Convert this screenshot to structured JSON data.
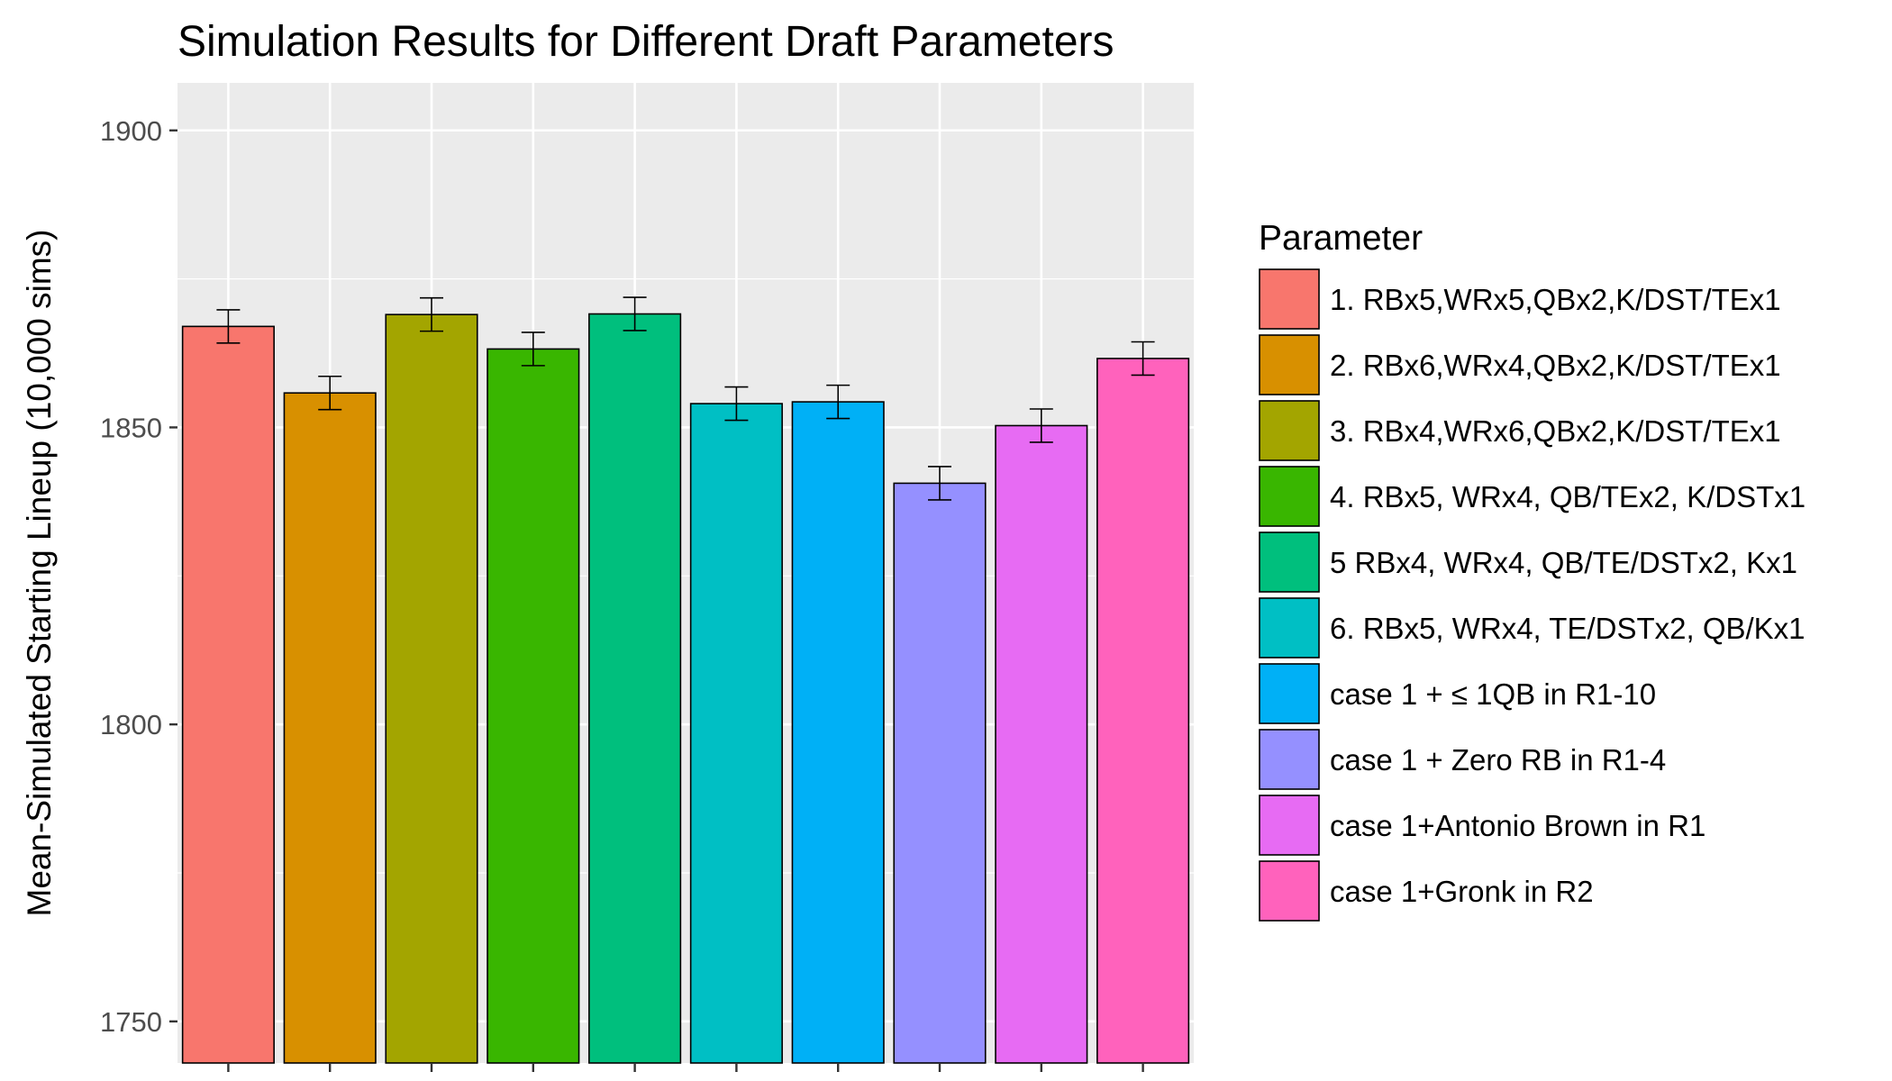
{
  "chart_data": {
    "type": "bar",
    "title": "Simulation Results for Different Draft Parameters",
    "xlabel": "",
    "ylabel": "Mean-Simulated Starting Lineup (10,000 sims)",
    "ylim": [
      1743,
      1908
    ],
    "yticks": [
      1750,
      1800,
      1850,
      1900
    ],
    "grid": true,
    "legend_title": "Parameter",
    "legend_position": "right",
    "categories": [
      "1. RBx5,WRx5,QBx2,K/DST/TEx1",
      "2. RBx6,WRx4,QBx2,K/DST/TEx1",
      "3. RBx4,WRx6,QBx2,K/DST/TEx1",
      "4. RBx5, WRx4, QB/TEx2, K/DSTx1",
      "5 RBx4, WRx4, QB/TE/DSTx2, Kx1",
      "6. RBx5, WRx4, TE/DSTx2, QB/Kx1",
      "case 1 + ≤ 1QB in R1-10",
      "case 1 + Zero RB in R1-4",
      "case 1+Antonio Brown in R1",
      "case 1+Gronk in R2"
    ],
    "values": [
      1867,
      1855.8,
      1869,
      1863.2,
      1869.1,
      1854,
      1854.3,
      1840.6,
      1850.3,
      1861.6
    ],
    "error_low": [
      1864.2,
      1853,
      1866.2,
      1860.4,
      1866.3,
      1851.2,
      1851.5,
      1837.8,
      1847.5,
      1858.8
    ],
    "error_high": [
      1869.8,
      1858.6,
      1871.8,
      1866,
      1871.9,
      1856.8,
      1857.1,
      1843.4,
      1853.1,
      1864.4
    ],
    "colors": [
      "#F8766D",
      "#D89000",
      "#A3A500",
      "#39B600",
      "#00BF7D",
      "#00BFC4",
      "#00B0F6",
      "#9590FF",
      "#E76BF3",
      "#FF62BC"
    ]
  }
}
